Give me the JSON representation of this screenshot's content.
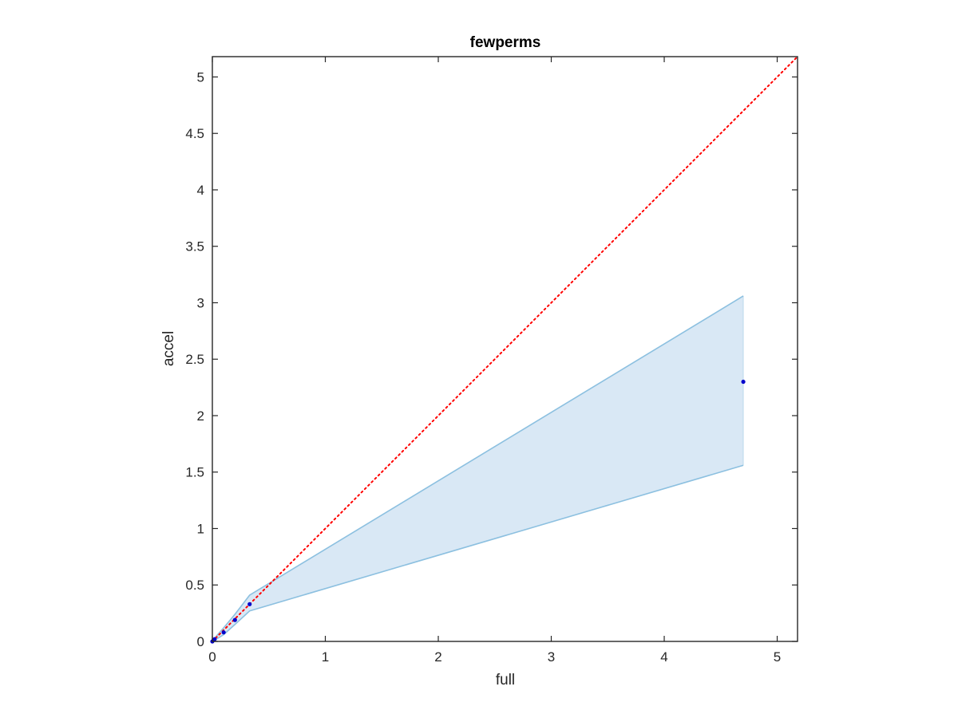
{
  "chart_data": {
    "type": "line",
    "title": "fewperms",
    "xlabel": "full",
    "ylabel": "accel",
    "xlim": [
      0,
      5.18
    ],
    "ylim": [
      0,
      5.18
    ],
    "xticks": [
      0,
      1,
      2,
      3,
      4,
      5
    ],
    "yticks": [
      0,
      0.5,
      1,
      1.5,
      2,
      2.5,
      3,
      3.5,
      4,
      4.5,
      5
    ],
    "xtick_labels": [
      "0",
      "1",
      "2",
      "3",
      "4",
      "5"
    ],
    "ytick_labels": [
      "0",
      "0.5",
      "1",
      "1.5",
      "2",
      "2.5",
      "3",
      "3.5",
      "4",
      "4.5",
      "5"
    ],
    "grid": false,
    "reference_line": {
      "style": "dotted",
      "color": "#ff0000",
      "x": [
        0,
        5.18
      ],
      "y": [
        0,
        5.18
      ]
    },
    "band": {
      "color": "#d9e8f5",
      "edge_color": "#8cc0e0",
      "x": [
        0,
        0.02,
        0.1,
        0.2,
        0.33,
        4.7
      ],
      "upper": [
        0.01,
        0.03,
        0.12,
        0.24,
        0.41,
        3.06
      ],
      "lower": [
        0.0,
        0.01,
        0.06,
        0.15,
        0.27,
        1.56
      ]
    },
    "series": [
      {
        "color": "#0000cc",
        "marker": "dot",
        "x": [
          0,
          0.02,
          0.1,
          0.2,
          0.33,
          4.7
        ],
        "y": [
          0.0,
          0.02,
          0.08,
          0.19,
          0.33,
          2.3
        ]
      }
    ]
  }
}
